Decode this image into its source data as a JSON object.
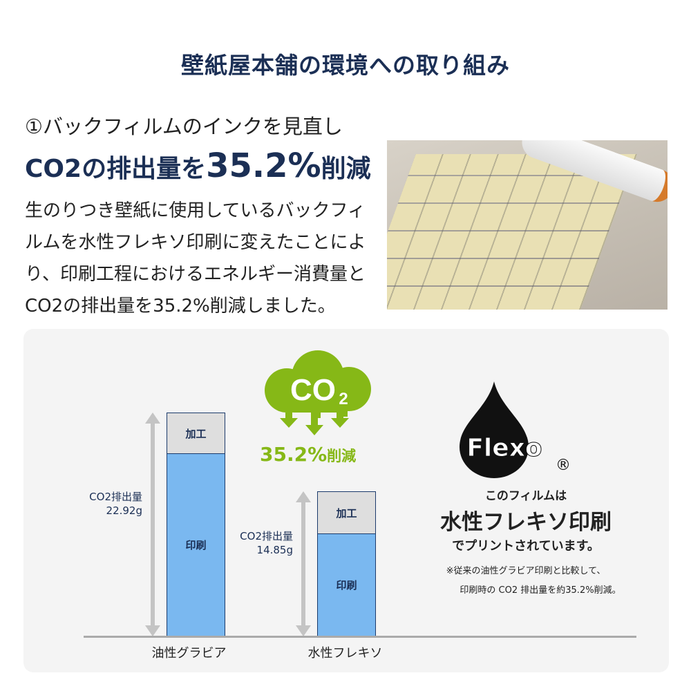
{
  "title": "壁紙屋本舗の環境への取り組み",
  "section": {
    "subtitle": "①バックフィルムのインクを見直し",
    "headline_pre": "CO2の排出量を",
    "headline_num": "35.2%",
    "headline_post": "削減",
    "body": "生のりつき壁紙に使用しているバックフィルムを水性フレキソ印刷に変えたことにより、印刷工程におけるエネルギー消費量とCO2の排出量を35.2%削減しました。"
  },
  "cloud": {
    "label": "CO",
    "sub": "2",
    "reduction_num": "35.2%",
    "reduction_text": "削減",
    "color": "#86b817"
  },
  "flexo": {
    "logo_text": "Flexo",
    "registered": "®",
    "line1": "このフィルムは",
    "line2": "水性フレキソ印刷",
    "line3": "でプリントされています。",
    "note1": "※従来の油性グラビア印刷と比較して、",
    "note2": "印刷時の CO2 排出量を約35.2%削減。"
  },
  "chart_data": {
    "type": "bar",
    "stacked": true,
    "categories": [
      "油性グラビア",
      "水性フレキソ"
    ],
    "series": [
      {
        "name": "印刷",
        "values": [
          18.7,
          10.5
        ],
        "color": "#7ab8f0"
      },
      {
        "name": "加工",
        "values": [
          4.22,
          4.35
        ],
        "color": "#dedede"
      }
    ],
    "totals": [
      22.92,
      14.85
    ],
    "total_labels": [
      {
        "line1": "CO2排出量",
        "line2": "22.92g"
      },
      {
        "line1": "CO2排出量",
        "line2": "14.85g"
      }
    ],
    "ylim": [
      0,
      22.92
    ]
  }
}
